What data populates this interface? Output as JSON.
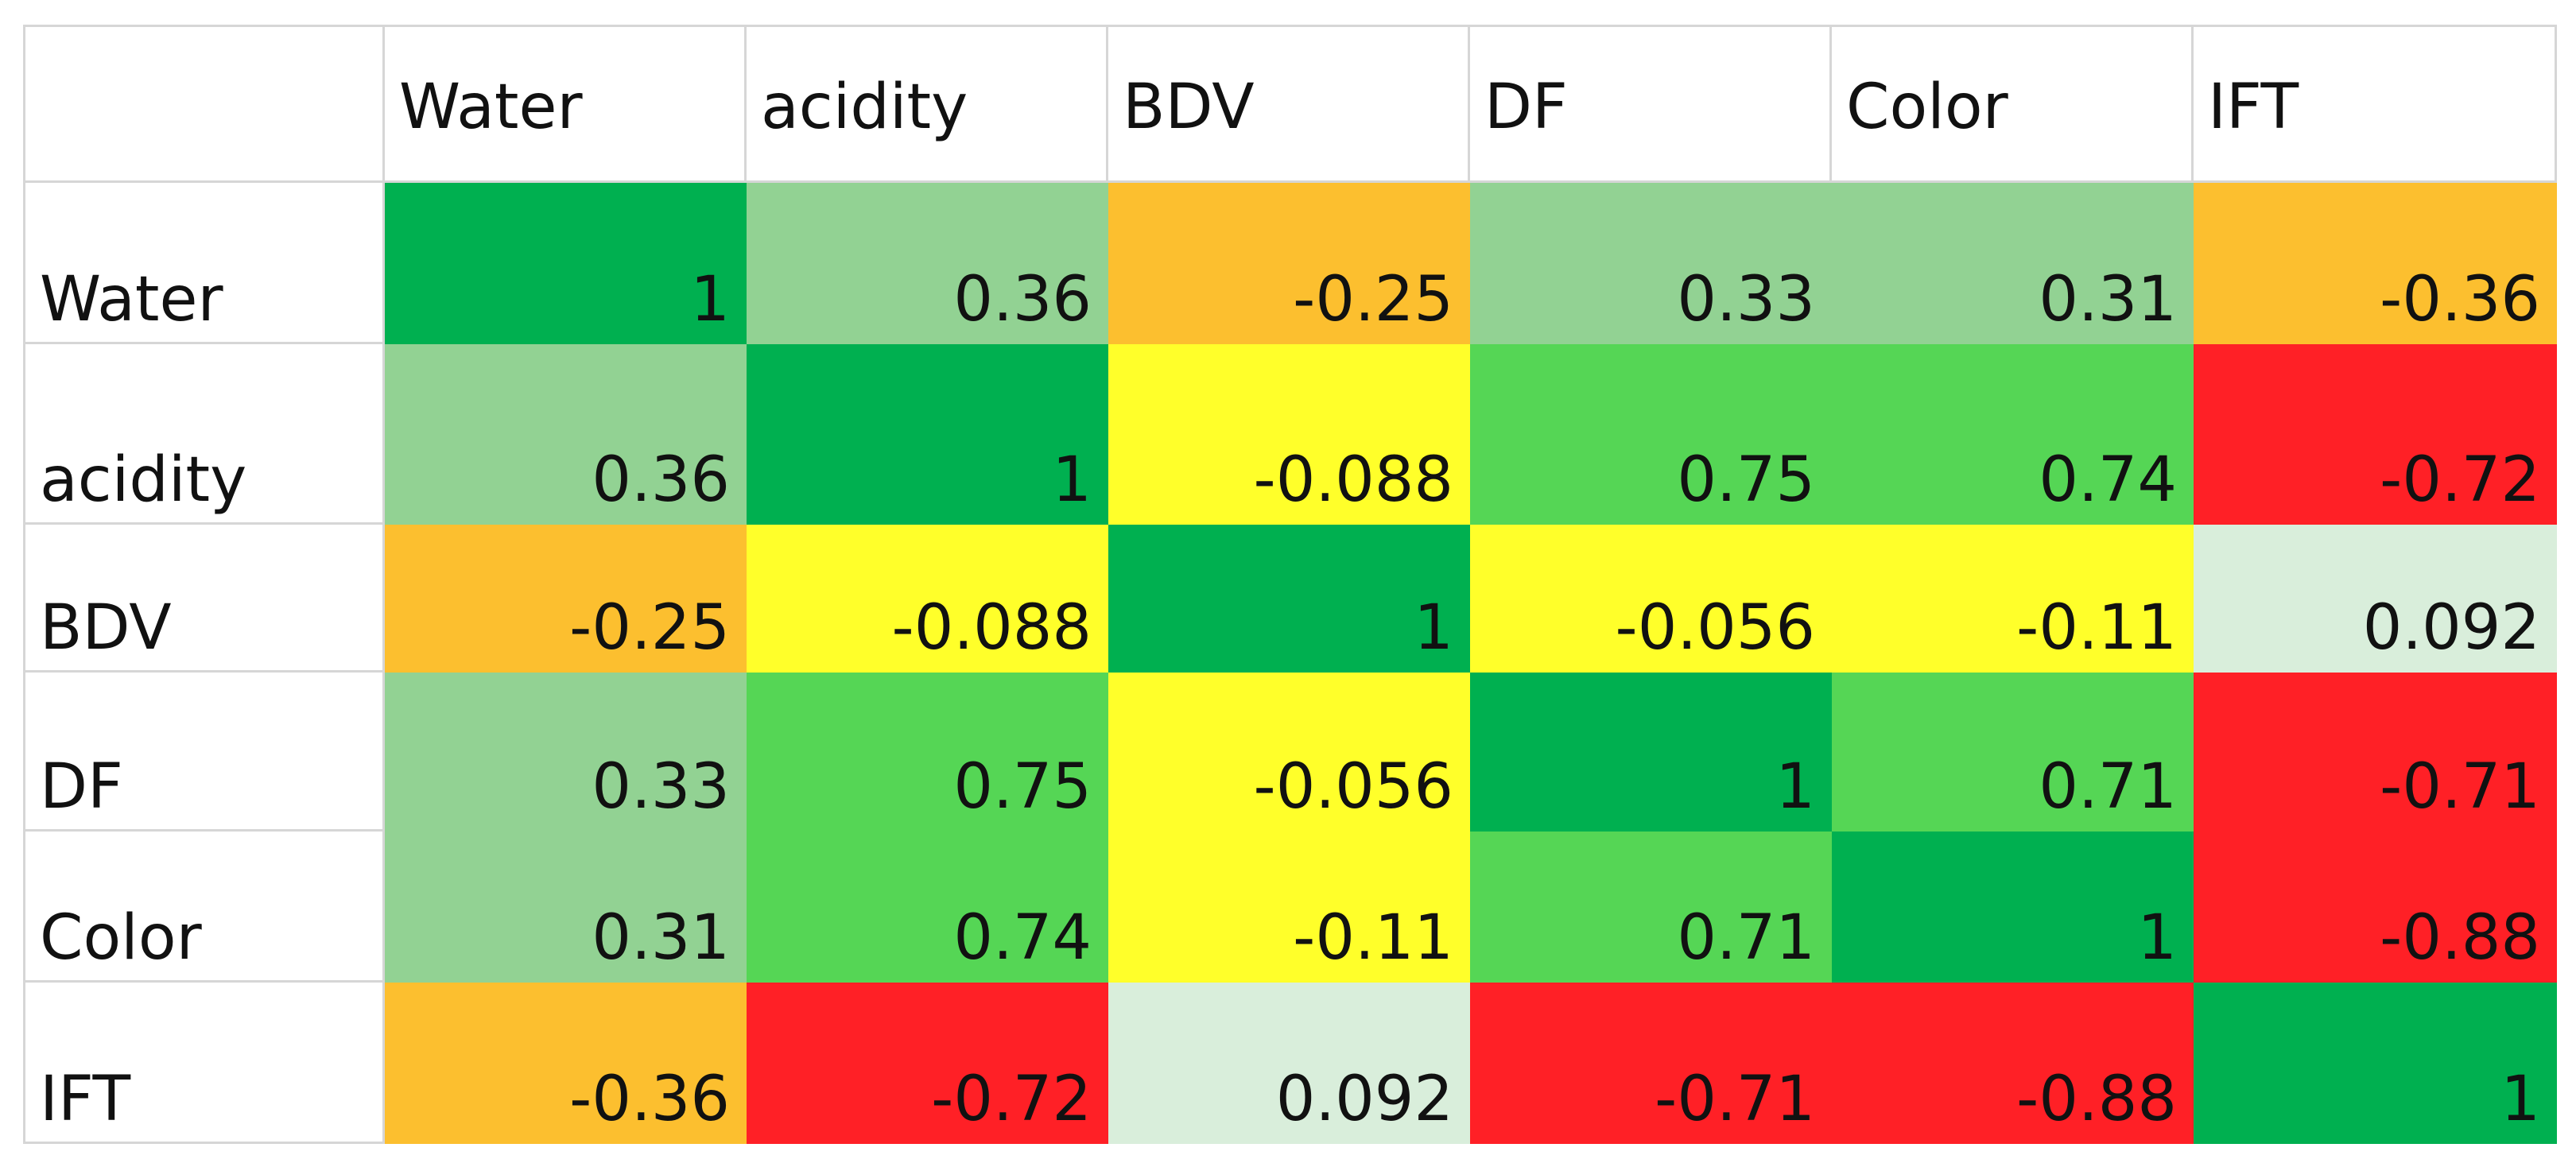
{
  "table": {
    "columns": [
      "Water",
      "acidity",
      "BDV",
      "DF",
      "Color",
      "IFT"
    ],
    "rows": [
      {
        "label": "Water",
        "values": [
          1,
          0.36,
          -0.25,
          0.33,
          0.31,
          -0.36
        ],
        "colors": [
          "#00b050",
          "#92d293",
          "#fcbf2f",
          "#92d293",
          "#92d293",
          "#fcbf2f"
        ]
      },
      {
        "label": "acidity",
        "values": [
          0.36,
          1,
          -0.088,
          0.75,
          0.74,
          -0.72
        ],
        "colors": [
          "#92d293",
          "#00b050",
          "#ffff2a",
          "#55d655",
          "#55d655",
          "#ff2026"
        ]
      },
      {
        "label": "BDV",
        "values": [
          -0.25,
          -0.088,
          1,
          -0.056,
          -0.11,
          0.092
        ],
        "colors": [
          "#fcbf2f",
          "#ffff2a",
          "#00b050",
          "#ffff2a",
          "#ffff2a",
          "#d9eedb"
        ]
      },
      {
        "label": "DF",
        "values": [
          0.33,
          0.75,
          -0.056,
          1,
          0.71,
          -0.71
        ],
        "colors": [
          "#92d293",
          "#55d655",
          "#ffff2a",
          "#00b050",
          "#55d655",
          "#ff2026"
        ]
      },
      {
        "label": "Color",
        "values": [
          0.31,
          0.74,
          -0.11,
          0.71,
          1,
          -0.88
        ],
        "colors": [
          "#92d293",
          "#55d655",
          "#ffff2a",
          "#55d655",
          "#00b050",
          "#ff2026"
        ]
      },
      {
        "label": "IFT",
        "values": [
          -0.36,
          -0.72,
          0.092,
          -0.71,
          -0.88,
          1
        ],
        "colors": [
          "#fcbf2f",
          "#ff2026",
          "#d9eedb",
          "#ff2026",
          "#ff2026",
          "#00b050"
        ]
      }
    ]
  }
}
